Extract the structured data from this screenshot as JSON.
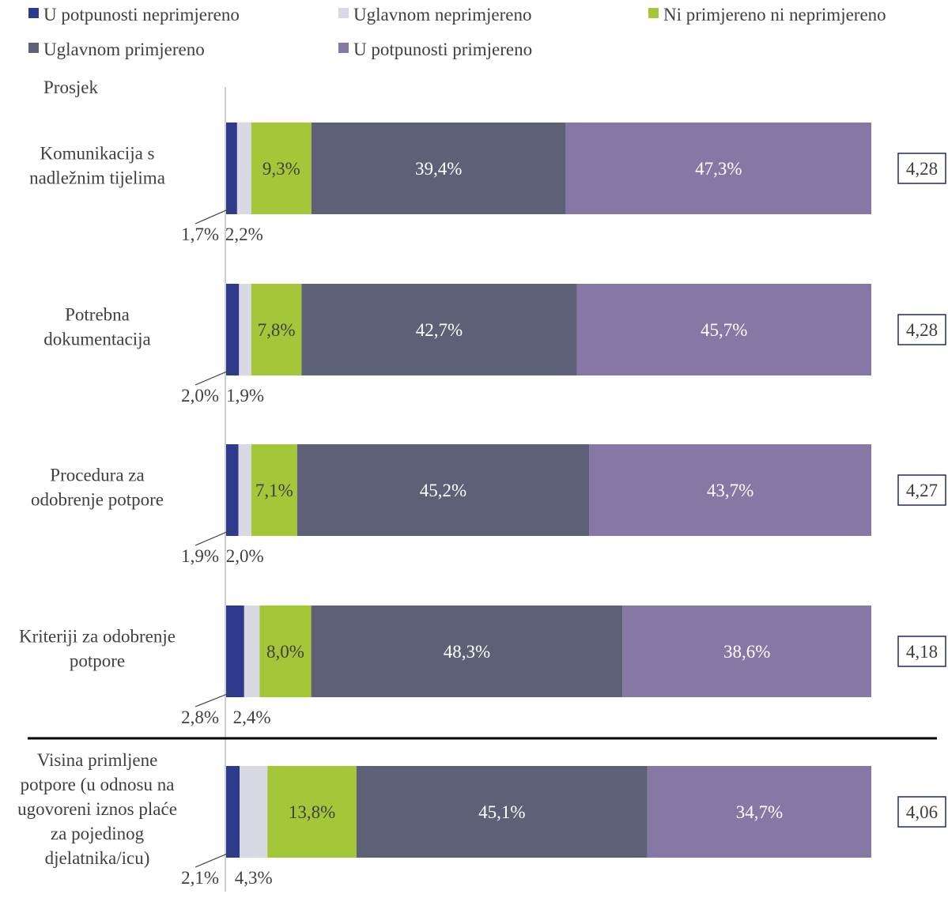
{
  "chart_data": {
    "type": "bar",
    "orientation": "horizontal",
    "stacked": true,
    "legend": [
      {
        "name": "U potpunosti neprimjereno",
        "color": "#2e3a8c"
      },
      {
        "name": "Uglavnom neprimjereno",
        "color": "#d9d9e3"
      },
      {
        "name": "Ni primjereno ni neprimjereno",
        "color": "#a4c639"
      },
      {
        "name": "Uglavnom primjereno",
        "color": "#5e6077"
      },
      {
        "name": "U potpunosti primjereno",
        "color": "#8678a5"
      }
    ],
    "legend_position": "top",
    "average_header": "Prosjek",
    "categories": [
      "Komunikacija s nadležnim tijelima",
      "Potrebna dokumentacija",
      "Procedura za odobrenje potpore",
      "Kriteriji za odobrenje potpore",
      "Visina primljene potpore (u odnosu na ugovoreni iznos plaće za pojedinog djelatnika/icu)"
    ],
    "category_lines": [
      [
        "Komunikacija s",
        "nadležnim tijelima"
      ],
      [
        "Potrebna",
        "dokumentacija"
      ],
      [
        "Procedura za",
        "odobrenje potpore"
      ],
      [
        "Kriteriji za odobrenje",
        "potpore"
      ],
      [
        "Visina primljene",
        "potpore (u odnosu na",
        "ugovoreni iznos plaće",
        "za pojedinog",
        "djelatnika/icu)"
      ]
    ],
    "series": [
      {
        "name": "U potpunosti neprimjereno",
        "values": [
          1.7,
          2.0,
          1.9,
          2.8,
          2.1
        ],
        "labels": [
          "1,7%",
          "2,0%",
          "1,9%",
          "2,8%",
          "2,1%"
        ]
      },
      {
        "name": "Uglavnom neprimjereno",
        "values": [
          2.2,
          1.9,
          2.0,
          2.4,
          4.3
        ],
        "labels": [
          "2,2%",
          "1,9%",
          "2,0%",
          "2,4%",
          "4,3%"
        ]
      },
      {
        "name": "Ni primjereno ni neprimjereno",
        "values": [
          9.3,
          7.8,
          7.1,
          8.0,
          13.8
        ],
        "labels": [
          "9,3%",
          "7,8%",
          "7,1%",
          "8,0%",
          "13,8%"
        ]
      },
      {
        "name": "Uglavnom primjereno",
        "values": [
          39.4,
          42.7,
          45.2,
          48.3,
          45.1
        ],
        "labels": [
          "39,4%",
          "42,7%",
          "45,2%",
          "48,3%",
          "45,1%"
        ]
      },
      {
        "name": "U potpunosti primjereno",
        "values": [
          47.3,
          45.7,
          43.7,
          38.6,
          34.7
        ],
        "labels": [
          "47,3%",
          "45,7%",
          "43,7%",
          "38,6%",
          "34,7%"
        ]
      }
    ],
    "averages": [
      "4,28",
      "4,28",
      "4,27",
      "4,18",
      "4,06"
    ],
    "xlim": [
      0,
      100
    ],
    "grid": false
  }
}
